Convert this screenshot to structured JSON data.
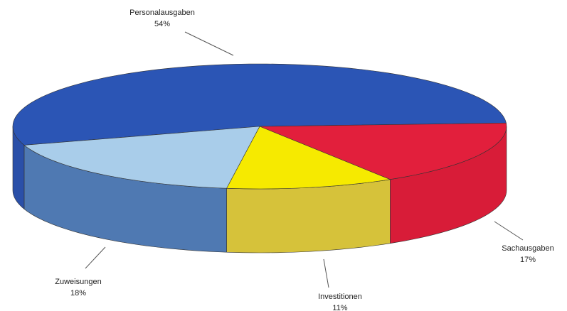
{
  "chart_data": {
    "type": "pie3d",
    "categories": [
      "Personalausgaben",
      "Sachausgaben",
      "Investitionen",
      "Zuweisungen"
    ],
    "values": [
      54,
      17,
      11,
      18
    ],
    "value_labels": [
      "54%",
      "17%",
      "11%",
      "18%"
    ],
    "colors": [
      "#2b55b5",
      "#e21f3c",
      "#f6ea00",
      "#a9cdea"
    ],
    "side_colors": [
      "#2a4fa8",
      "#d81c38",
      "#d6c23a",
      "#4f79b2"
    ]
  }
}
